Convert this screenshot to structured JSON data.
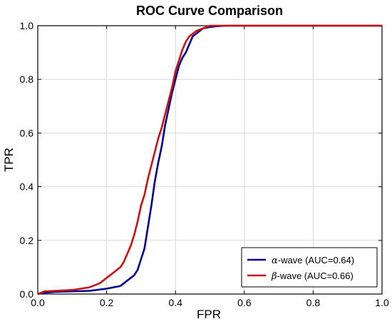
{
  "chart_data": {
    "type": "line",
    "title": "ROC Curve Comparison",
    "xlabel": "FPR",
    "ylabel": "TPR",
    "xlim": [
      0.0,
      1.0
    ],
    "ylim": [
      0.0,
      1.0
    ],
    "xticks": [
      "0.0",
      "0.2",
      "0.4",
      "0.6",
      "0.8",
      "1.0"
    ],
    "yticks": [
      "0.0",
      "0.2",
      "0.4",
      "0.6",
      "0.8",
      "1.0"
    ],
    "grid": true,
    "legend_position": "bottom-right",
    "series": [
      {
        "name": "α-wave (AUC=0.64)",
        "legend_greek": "α",
        "legend_rest": "-wave (AUC=0.64)",
        "color": "#000099",
        "x": [
          0.0,
          0.02,
          0.05,
          0.1,
          0.15,
          0.2,
          0.24,
          0.26,
          0.28,
          0.29,
          0.3,
          0.31,
          0.32,
          0.33,
          0.34,
          0.35,
          0.36,
          0.37,
          0.38,
          0.39,
          0.4,
          0.41,
          0.42,
          0.43,
          0.44,
          0.45,
          0.46,
          0.47,
          0.48,
          0.5,
          0.52,
          0.55,
          0.6,
          0.7,
          0.8,
          0.9,
          1.0
        ],
        "y": [
          0.0,
          0.005,
          0.008,
          0.01,
          0.012,
          0.02,
          0.03,
          0.05,
          0.07,
          0.09,
          0.13,
          0.17,
          0.25,
          0.33,
          0.42,
          0.49,
          0.55,
          0.63,
          0.69,
          0.75,
          0.8,
          0.85,
          0.88,
          0.9,
          0.93,
          0.96,
          0.97,
          0.98,
          0.99,
          0.995,
          0.998,
          1.0,
          1.0,
          1.0,
          1.0,
          1.0,
          1.0
        ]
      },
      {
        "name": "β-wave (AUC=0.66)",
        "legend_greek": "β",
        "legend_rest": "-wave (AUC=0.66)",
        "color": "#cc1111",
        "x": [
          0.0,
          0.02,
          0.05,
          0.1,
          0.15,
          0.18,
          0.2,
          0.22,
          0.24,
          0.25,
          0.26,
          0.27,
          0.28,
          0.29,
          0.3,
          0.31,
          0.32,
          0.33,
          0.34,
          0.35,
          0.36,
          0.37,
          0.38,
          0.39,
          0.4,
          0.41,
          0.42,
          0.43,
          0.44,
          0.45,
          0.46,
          0.47,
          0.48,
          0.49,
          0.5,
          0.52,
          0.55,
          0.6,
          0.7,
          0.8,
          0.9,
          1.0
        ],
        "y": [
          0.0,
          0.01,
          0.012,
          0.015,
          0.025,
          0.04,
          0.06,
          0.08,
          0.1,
          0.12,
          0.15,
          0.18,
          0.22,
          0.27,
          0.33,
          0.37,
          0.43,
          0.48,
          0.53,
          0.58,
          0.62,
          0.67,
          0.72,
          0.77,
          0.83,
          0.87,
          0.91,
          0.94,
          0.96,
          0.97,
          0.98,
          0.985,
          0.99,
          0.995,
          1.0,
          1.0,
          1.0,
          1.0,
          1.0,
          1.0,
          1.0,
          1.0
        ]
      }
    ]
  }
}
